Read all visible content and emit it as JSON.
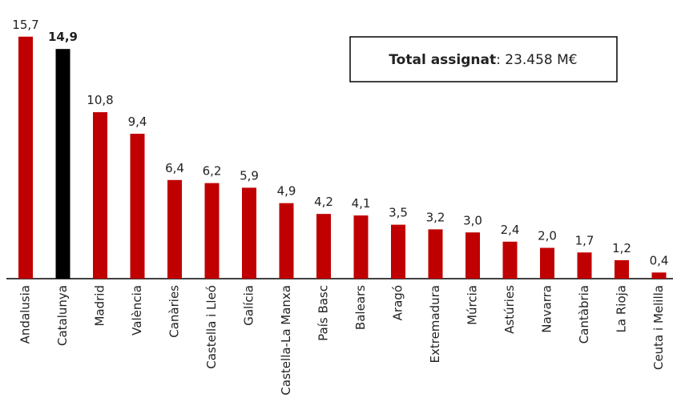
{
  "chart_data": {
    "type": "bar",
    "categories": [
      "Andalusia",
      "Catalunya",
      "Madrid",
      "València",
      "Canàries",
      "Castella i Lleó",
      "Galícia",
      "Castella-La Manxa",
      "País Basc",
      "Balears",
      "Aragó",
      "Extremadura",
      "Múrcia",
      "Astúries",
      "Navarra",
      "Cantàbria",
      "La Rioja",
      "Ceuta i Melilla"
    ],
    "values": [
      15.7,
      14.9,
      10.8,
      9.4,
      6.4,
      6.2,
      5.9,
      4.9,
      4.2,
      4.1,
      3.5,
      3.2,
      3.0,
      2.4,
      2.0,
      1.7,
      1.2,
      0.4
    ],
    "value_labels": [
      "15,7",
      "14,9",
      "10,8",
      "9,4",
      "6,4",
      "6,2",
      "5,9",
      "4,9",
      "4,2",
      "4,1",
      "3,5",
      "3,2",
      "3,0",
      "2,4",
      "2,0",
      "1,7",
      "1,2",
      "0,4"
    ],
    "color": "#c00000",
    "highlight_color": "#000000",
    "highlight_index": 1,
    "ylim": [
      0,
      16
    ],
    "annotation": {
      "label": "Total assignat",
      "text": ": 23.458 M€"
    }
  }
}
